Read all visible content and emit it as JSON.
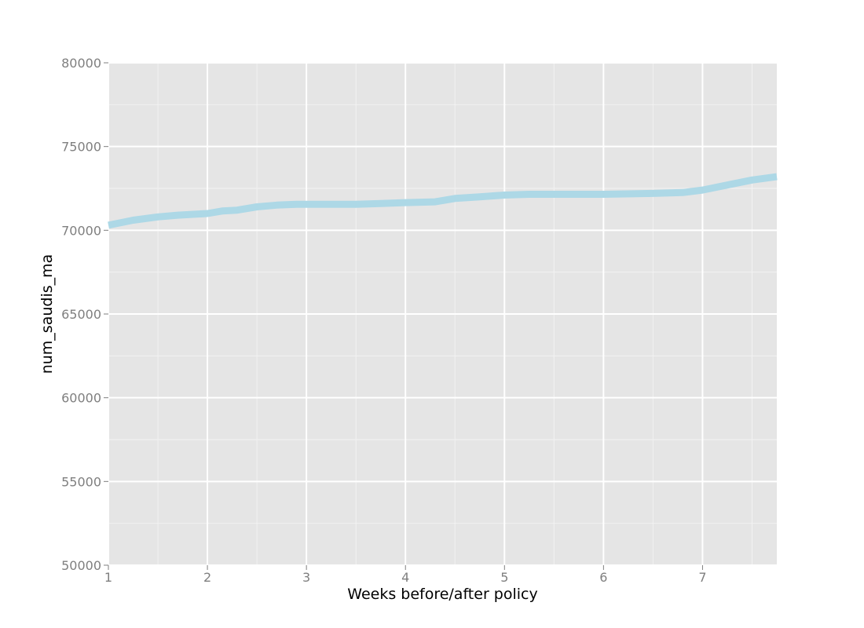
{
  "chart_data": {
    "type": "line",
    "title": "",
    "xlabel": "Weeks before/after policy",
    "ylabel": "num_saudis_ma",
    "xlim": [
      1,
      7.75
    ],
    "ylim": [
      50000,
      80000
    ],
    "x_ticks": [
      1,
      2,
      3,
      4,
      5,
      6,
      7
    ],
    "y_ticks": [
      50000,
      55000,
      60000,
      65000,
      70000,
      75000,
      80000
    ],
    "grid": true,
    "line_color": "#add8e6",
    "panel_color": "#e5e5e5",
    "grid_color": "#ffffff",
    "series": [
      {
        "x": [
          1.0,
          1.25,
          1.5,
          1.7,
          2.0,
          2.15,
          2.3,
          2.5,
          2.7,
          2.9,
          3.0,
          3.25,
          3.5,
          3.75,
          4.0,
          4.3,
          4.5,
          4.75,
          5.0,
          5.25,
          5.5,
          6.0,
          6.5,
          6.8,
          7.0,
          7.25,
          7.5,
          7.75
        ],
        "y": [
          70300,
          70600,
          70800,
          70900,
          71000,
          71150,
          71200,
          71400,
          71500,
          71550,
          71550,
          71550,
          71550,
          71600,
          71650,
          71700,
          71900,
          72000,
          72100,
          72150,
          72150,
          72150,
          72200,
          72250,
          72400,
          72700,
          73000,
          73200
        ]
      }
    ]
  }
}
